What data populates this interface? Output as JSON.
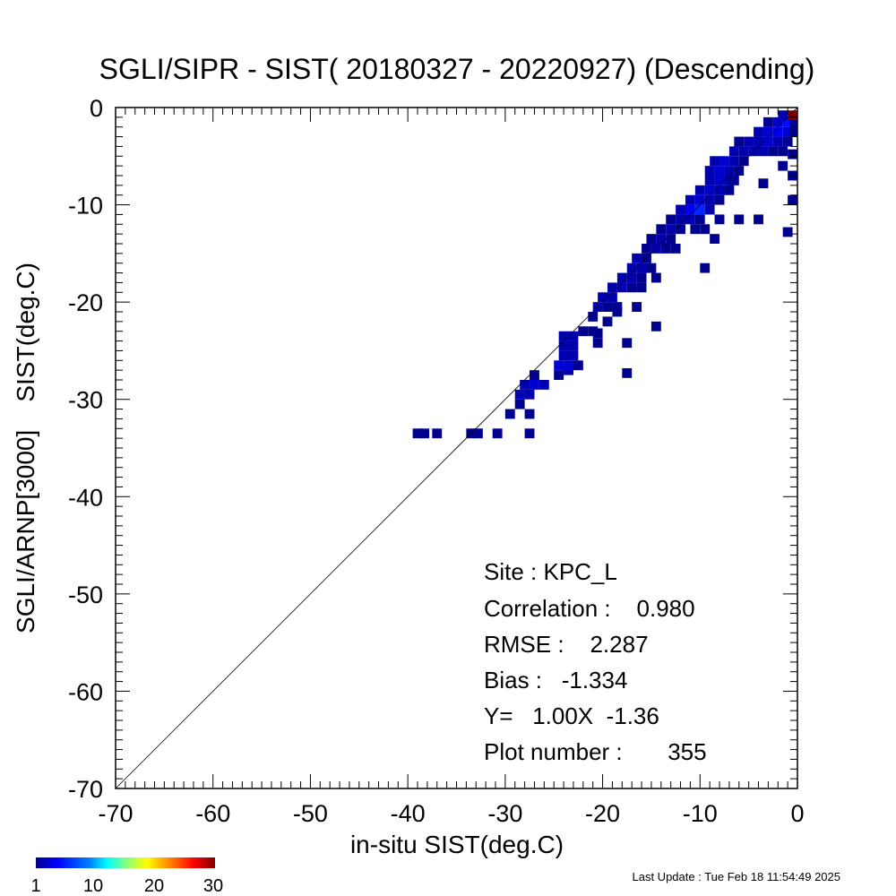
{
  "chart_data": {
    "type": "heatmap",
    "title": "SGLI/SIPR - SIST( 20180327 - 20220927) (Descending)",
    "xlabel": "in-situ SIST(deg.C)",
    "ylabel": "SGLI/ARNP[3000]    SIST(deg.C)",
    "xlim": [
      -70,
      0
    ],
    "ylim": [
      -70,
      0
    ],
    "x_ticks": [
      "-70",
      "-60",
      "-50",
      "-40",
      "-30",
      "-20",
      "-10",
      "0"
    ],
    "y_ticks": [
      "-70",
      "-60",
      "-50",
      "-40",
      "-30",
      "-20",
      "-10",
      "0"
    ],
    "reference_line": "1:1 diagonal",
    "colorbar": {
      "range": [
        1,
        30
      ],
      "ticks": [
        "1",
        "10",
        "20",
        "30"
      ],
      "colors": [
        "#00008f",
        "#0000ff",
        "#0080ff",
        "#00ffff",
        "#80ff80",
        "#ffff00",
        "#ff8000",
        "#ff0000",
        "#800000"
      ]
    },
    "cell_size": 1,
    "cells": [
      [
        -39,
        -33.5,
        1
      ],
      [
        -38.3,
        -33.5,
        1
      ],
      [
        -37,
        -33.5,
        1
      ],
      [
        -33.5,
        -33.5,
        1
      ],
      [
        -32.8,
        -33.5,
        1
      ],
      [
        -30.8,
        -33.5,
        1
      ],
      [
        -27.5,
        -33.5,
        1
      ],
      [
        -29.5,
        -31.5,
        1
      ],
      [
        -27.5,
        -31.5,
        1
      ],
      [
        -28.5,
        -30.5,
        1
      ],
      [
        -28.5,
        -29.5,
        2
      ],
      [
        -27.5,
        -29.5,
        2
      ],
      [
        -28,
        -28.5,
        2
      ],
      [
        -27,
        -28.5,
        3
      ],
      [
        -26,
        -28.5,
        2
      ],
      [
        -27,
        -27.5,
        1
      ],
      [
        -24.5,
        -27.5,
        1
      ],
      [
        -23.5,
        -27,
        2
      ],
      [
        -24.5,
        -26.5,
        3
      ],
      [
        -23.5,
        -26.5,
        3
      ],
      [
        -22.5,
        -26.5,
        1
      ],
      [
        -24,
        -25.5,
        2
      ],
      [
        -23,
        -25.5,
        2
      ],
      [
        -24,
        -24.5,
        2
      ],
      [
        -23,
        -24.5,
        2
      ],
      [
        -24,
        -23.5,
        2
      ],
      [
        -23,
        -23.5,
        2
      ],
      [
        -22,
        -23,
        1
      ],
      [
        -21,
        -23,
        1
      ],
      [
        -20.5,
        -23.2,
        1
      ],
      [
        -20.5,
        -24.2,
        1
      ],
      [
        -17.5,
        -24.2,
        1
      ],
      [
        -17.5,
        -27.3,
        1
      ],
      [
        -14.5,
        -22.5,
        1
      ],
      [
        -19.5,
        -22,
        1
      ],
      [
        -21,
        -21.5,
        1
      ],
      [
        -20.5,
        -20.5,
        2
      ],
      [
        -19.5,
        -20.5,
        1
      ],
      [
        -18.5,
        -20.5,
        1
      ],
      [
        -20,
        -19.5,
        2
      ],
      [
        -19,
        -19.5,
        2
      ],
      [
        -18.5,
        -21,
        1
      ],
      [
        -16.5,
        -20.5,
        1
      ],
      [
        -19,
        -18.5,
        2
      ],
      [
        -18,
        -18.5,
        2
      ],
      [
        -17,
        -18.5,
        1
      ],
      [
        -16,
        -18.5,
        1
      ],
      [
        -18,
        -17.5,
        2
      ],
      [
        -17,
        -17.5,
        2
      ],
      [
        -16,
        -17.5,
        1
      ],
      [
        -14.5,
        -17.5,
        1
      ],
      [
        -17,
        -16.5,
        2
      ],
      [
        -16,
        -16.5,
        2
      ],
      [
        -15,
        -16.5,
        1
      ],
      [
        -16.5,
        -15.5,
        2
      ],
      [
        -15.5,
        -15.5,
        1
      ],
      [
        -15.5,
        -14.5,
        1
      ],
      [
        -14.5,
        -14.5,
        2
      ],
      [
        -13.5,
        -14.5,
        1
      ],
      [
        -12.5,
        -14.5,
        1
      ],
      [
        -15,
        -13.5,
        1
      ],
      [
        -14,
        -13.5,
        2
      ],
      [
        -13,
        -13.5,
        1
      ],
      [
        -14,
        -12.5,
        1
      ],
      [
        -13,
        -12.5,
        2
      ],
      [
        -12,
        -12.5,
        1
      ],
      [
        -10.5,
        -12.5,
        1
      ],
      [
        -9.5,
        -12.5,
        1
      ],
      [
        -8.5,
        -13.5,
        1
      ],
      [
        -9.5,
        -16.5,
        1
      ],
      [
        -13,
        -11.5,
        1
      ],
      [
        -12,
        -11.5,
        2
      ],
      [
        -11,
        -11.5,
        2
      ],
      [
        -10,
        -11.5,
        1
      ],
      [
        -8,
        -11.5,
        1
      ],
      [
        -6,
        -11.5,
        1
      ],
      [
        -4,
        -11.5,
        1
      ],
      [
        -1,
        -12.8,
        1
      ],
      [
        -12,
        -10.5,
        2
      ],
      [
        -11,
        -10.5,
        4
      ],
      [
        -10,
        -10.5,
        6
      ],
      [
        -9,
        -10.5,
        2
      ],
      [
        -11,
        -9.5,
        2
      ],
      [
        -10,
        -9.5,
        3
      ],
      [
        -9,
        -9.5,
        2
      ],
      [
        -8,
        -9.5,
        1
      ],
      [
        -10,
        -8.5,
        2
      ],
      [
        -9,
        -8.5,
        3
      ],
      [
        -8,
        -8.5,
        2
      ],
      [
        -7,
        -8.5,
        1
      ],
      [
        -9,
        -7.5,
        2
      ],
      [
        -8,
        -7.5,
        3
      ],
      [
        -7,
        -7.5,
        2
      ],
      [
        -6.5,
        -7.5,
        1
      ],
      [
        -3.5,
        -7.8,
        1
      ],
      [
        -0.5,
        -9.5,
        1
      ],
      [
        -9,
        -6.5,
        2
      ],
      [
        -8,
        -6.5,
        3
      ],
      [
        -7,
        -6.5,
        2
      ],
      [
        -6,
        -6.5,
        1
      ],
      [
        -0.5,
        -7,
        1
      ],
      [
        -8.5,
        -5.5,
        2
      ],
      [
        -7.5,
        -5.5,
        3
      ],
      [
        -6.5,
        -5.5,
        2
      ],
      [
        -5.5,
        -5.5,
        1
      ],
      [
        -1.5,
        -6,
        1
      ],
      [
        -6.5,
        -4.5,
        2
      ],
      [
        -5.5,
        -4.5,
        2
      ],
      [
        -4.5,
        -4.5,
        2
      ],
      [
        -3.5,
        -4.5,
        2
      ],
      [
        -2.5,
        -4.5,
        1
      ],
      [
        -1.5,
        -4.5,
        1
      ],
      [
        -0.5,
        -4.8,
        1
      ],
      [
        -6,
        -3.5,
        1
      ],
      [
        -5,
        -3.5,
        2
      ],
      [
        -4,
        -3.5,
        2
      ],
      [
        -3,
        -3.5,
        3
      ],
      [
        -2,
        -3.5,
        2
      ],
      [
        -1,
        -3.5,
        1
      ],
      [
        -4,
        -2.5,
        2
      ],
      [
        -3,
        -2.5,
        3
      ],
      [
        -2,
        -2.5,
        4
      ],
      [
        -1,
        -2.5,
        3
      ],
      [
        -0.3,
        -2.5,
        1
      ],
      [
        -3,
        -1.5,
        1
      ],
      [
        -2,
        -1.5,
        3
      ],
      [
        -1,
        -1.5,
        5
      ],
      [
        -0.3,
        -1.5,
        1
      ],
      [
        -1.5,
        -0.8,
        2
      ],
      [
        -0.5,
        -0.8,
        30
      ]
    ],
    "annotations": {
      "site": "Site : KPC_L",
      "correlation": "Correlation :    0.980",
      "rmse": "RMSE :    2.287",
      "bias": "Bias :   -1.334",
      "fit": "Y=   1.00X  -1.36",
      "plot_number": "Plot number :       355"
    }
  },
  "footer": {
    "last_update": "Last Update : Tue Feb 18 11:54:49 2025"
  }
}
